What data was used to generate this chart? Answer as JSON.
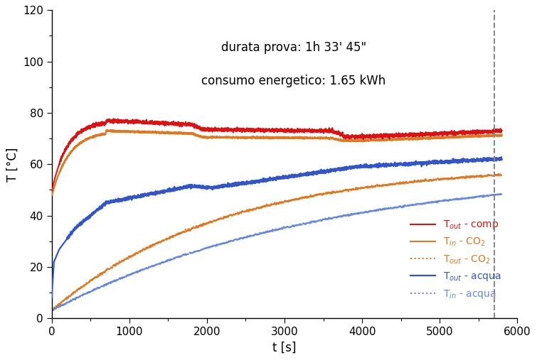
{
  "title_line1": "durata prova: 1h 33' 45\"",
  "title_line2": "consumo energetico: 1.65 kWh",
  "xlabel": "t [s]",
  "ylabel": "T [°C]",
  "xlim": [
    0,
    6000
  ],
  "ylim": [
    0,
    120
  ],
  "xticks": [
    0,
    1000,
    2000,
    3000,
    4000,
    5000,
    6000
  ],
  "yticks": [
    0,
    20,
    40,
    60,
    80,
    100,
    120
  ],
  "vline_x": 5700,
  "colors": {
    "T_out_comp": "#dd1111",
    "T_in_CO2": "#e07820",
    "T_out_CO2": "#e07820",
    "T_out_acqua": "#3355cc",
    "T_in_acqua": "#6688dd"
  },
  "legend_labels": [
    "T$_{out}$ - comp",
    "T$_{in}$ - CO$_2$",
    "T$_{out}$ - CO$_2$",
    "T$_{out}$ - acqua",
    "T$_{in}$ - acqua"
  ],
  "background_color": "#ffffff",
  "annotation_fontsize": 12,
  "axis_fontsize": 12,
  "tick_fontsize": 11,
  "legend_fontsize": 10
}
